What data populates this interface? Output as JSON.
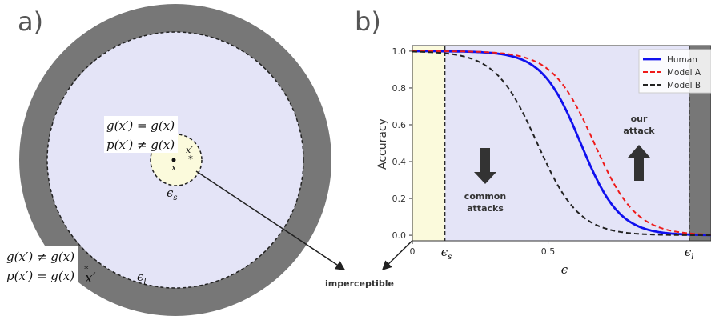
{
  "panels": {
    "a": "a)",
    "b": "b)"
  },
  "diagram": {
    "inner_eq1": "g(x′) = g(x)",
    "inner_eq2": "p(x′) ≠ g(x)",
    "outer_eq1": "g(x′) ≠ g(x)",
    "outer_eq2": "p(x′) = g(x)",
    "x_label": "x",
    "x_prime_label": "x′",
    "outer_x_prime_label": "x′",
    "eps_s": "ϵ",
    "eps_s_sub": "s",
    "eps_l": "ϵ",
    "eps_l_sub": "l",
    "imperceptible": "imperceptible",
    "colors": {
      "outer_ring": "#777777",
      "inner_disc": "#e4e4f7",
      "small_disc": "#fbfadc"
    }
  },
  "chart_data": {
    "type": "line",
    "xlabel": "ϵ",
    "ylabel": "Accuracy",
    "xlim": [
      0,
      1.1
    ],
    "ylim": [
      -0.03,
      1.03
    ],
    "y_ticks": [
      "0.0",
      "0.2",
      "0.4",
      "0.6",
      "0.8",
      "1.0"
    ],
    "x_ticks": [
      "0",
      "0.5"
    ],
    "eps_s_value": 0.12,
    "eps_l_value": 1.02,
    "eps_s_label": "ϵ",
    "eps_s_sub": "s",
    "eps_l_label": "ϵ",
    "eps_l_sub": "l",
    "common_attacks_line1": "common",
    "common_attacks_line2": "attacks",
    "our_attack_line1": "our",
    "our_attack_line2": "attack",
    "series": [
      {
        "name": "Human",
        "color": "#1010ee",
        "dash": "solid",
        "midpoint": 0.62,
        "steepness": 14
      },
      {
        "name": "Model A",
        "color": "#ee1a1a",
        "dash": "dashed",
        "midpoint": 0.67,
        "steepness": 13
      },
      {
        "name": "Model B",
        "color": "#222222",
        "dash": "dashed",
        "midpoint": 0.46,
        "steepness": 13
      }
    ],
    "shading": {
      "left": "#fbfadc",
      "middle": "#e4e4f7",
      "right": "#777777"
    }
  }
}
